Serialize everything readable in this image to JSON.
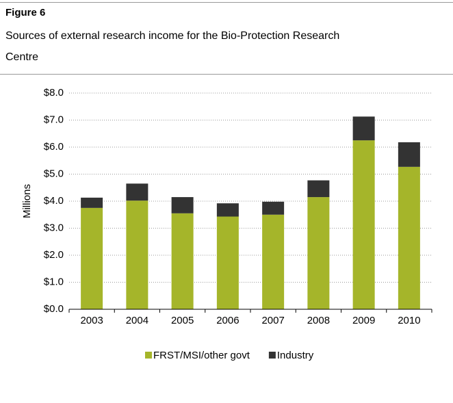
{
  "chart_data": {
    "type": "stacked_bar",
    "title": "Figure 6",
    "subtitle": "Sources of external research income for the Bio-Protection Research Centre",
    "y_label": "Millions",
    "categories": [
      "2003",
      "2004",
      "2005",
      "2006",
      "2007",
      "2008",
      "2009",
      "2010"
    ],
    "series": [
      {
        "name": "FRST/MSI/other govt",
        "color": "#a5b52a",
        "values": [
          3.75,
          4.02,
          3.55,
          3.43,
          3.5,
          4.15,
          6.25,
          5.27
        ]
      },
      {
        "name": "Industry",
        "color": "#333333",
        "values": [
          0.38,
          0.63,
          0.6,
          0.49,
          0.48,
          0.62,
          0.88,
          0.91
        ]
      }
    ],
    "ylim": [
      0,
      8
    ],
    "yticks": [
      {
        "value": 0,
        "label": "$0.0"
      },
      {
        "value": 1,
        "label": "$1.0"
      },
      {
        "value": 2,
        "label": "$2.0"
      },
      {
        "value": 3,
        "label": "$3.0"
      },
      {
        "value": 4,
        "label": "$4.0"
      },
      {
        "value": 5,
        "label": "$5.0"
      },
      {
        "value": 6,
        "label": "$6.0"
      },
      {
        "value": 7,
        "label": "$7.0"
      },
      {
        "value": 8,
        "label": "$8.0"
      }
    ],
    "grid": true
  }
}
